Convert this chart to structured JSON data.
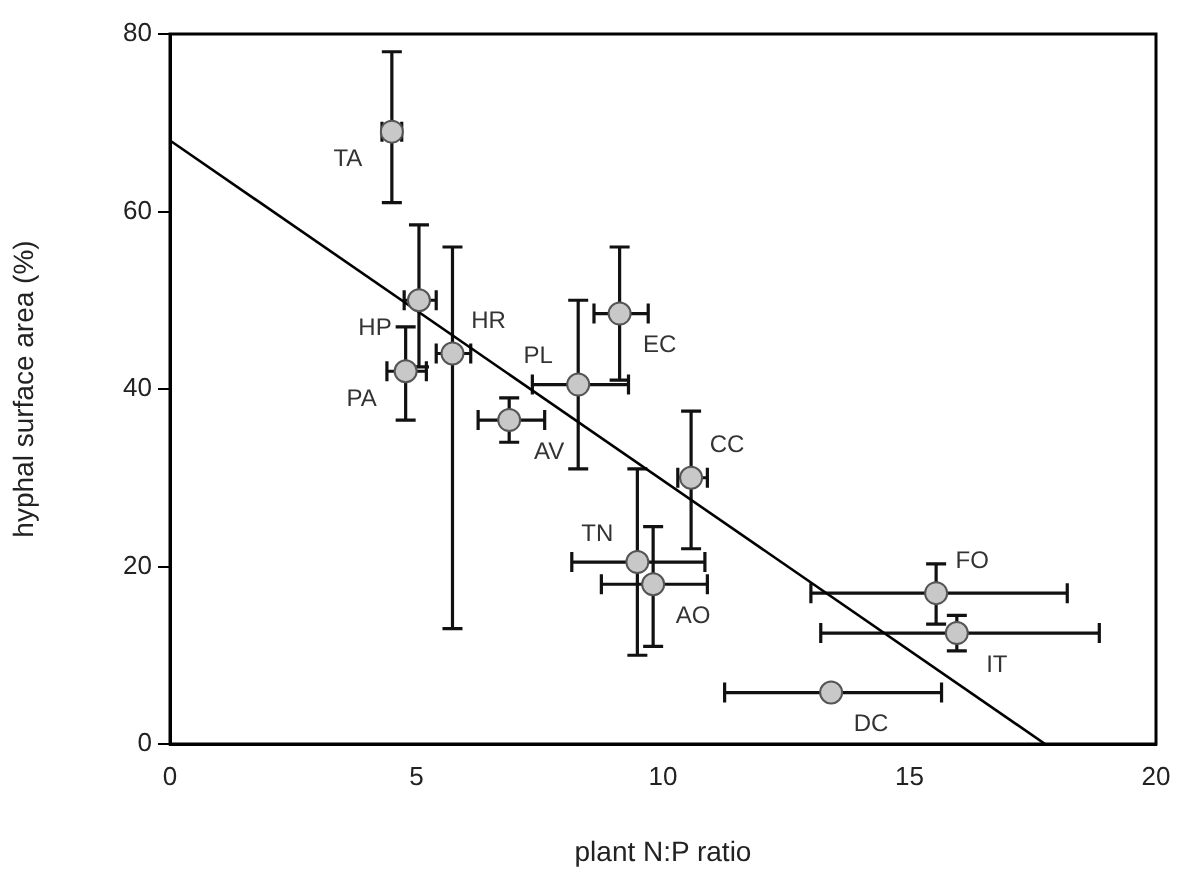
{
  "chart_data": {
    "type": "scatter",
    "xlabel": "plant N:P ratio",
    "ylabel": "hyphal surface area (%)",
    "xlim": [
      0,
      20
    ],
    "xticks": [
      0,
      5,
      10,
      15,
      20
    ],
    "ylim": [
      0,
      80
    ],
    "yticks": [
      0,
      20,
      40,
      60,
      80
    ],
    "grid": false,
    "legend": false,
    "marker": "circle",
    "series": [
      {
        "type": "line",
        "color": "#000000",
        "marker": "none",
        "x": [
          0,
          17.75
        ],
        "values": [
          68,
          0
        ]
      },
      {
        "color": "#c8c8c8",
        "x": [
          4.5,
          5.05,
          5.73,
          4.78,
          9.12,
          8.28,
          6.88,
          10.57,
          9.48,
          9.8,
          13.41,
          15.54,
          15.96
        ],
        "values": [
          69,
          50,
          44,
          42,
          48.5,
          40.5,
          36.5,
          30,
          20.5,
          18,
          5.8,
          17,
          12.5
        ],
        "errors": [
          [
            61,
            78
          ],
          [
            42.5,
            58.5
          ],
          [
            13,
            56
          ],
          [
            36.5,
            47
          ],
          [
            41,
            56
          ],
          [
            31,
            50
          ],
          [
            34,
            39
          ],
          [
            22,
            37.5
          ],
          [
            10,
            31
          ],
          [
            11,
            24.5
          ],
          null,
          [
            13.5,
            20.3
          ],
          [
            10.5,
            14.5
          ]
        ],
        "xerrors": [
          [
            4.3,
            4.7
          ],
          [
            4.75,
            5.4
          ],
          [
            5.4,
            6.1
          ],
          [
            4.4,
            5.2
          ],
          [
            8.6,
            9.7
          ],
          [
            7.35,
            9.3
          ],
          [
            6.25,
            7.6
          ],
          [
            10.3,
            10.9
          ],
          [
            8.15,
            10.85
          ],
          [
            8.75,
            10.9
          ],
          [
            11.25,
            15.65
          ],
          [
            13,
            18.2
          ],
          [
            13.2,
            18.85
          ]
        ]
      }
    ],
    "annotations": [
      {
        "text": "TA",
        "x": 4.5,
        "y": 69
      },
      {
        "text": "HP",
        "x": 5.05,
        "y": 50
      },
      {
        "text": "HR",
        "x": 5.73,
        "y": 44
      },
      {
        "text": "PA",
        "x": 4.78,
        "y": 42
      },
      {
        "text": "EC",
        "x": 9.12,
        "y": 48.5
      },
      {
        "text": "PL",
        "x": 8.28,
        "y": 40.5
      },
      {
        "text": "AV",
        "x": 6.88,
        "y": 36.5
      },
      {
        "text": "CC",
        "x": 10.57,
        "y": 30
      },
      {
        "text": "TN",
        "x": 9.48,
        "y": 20.5
      },
      {
        "text": "AO",
        "x": 9.8,
        "y": 18
      },
      {
        "text": "DC",
        "x": 13.41,
        "y": 5.8
      },
      {
        "text": "FO",
        "x": 15.54,
        "y": 17
      },
      {
        "text": "IT",
        "x": 15.96,
        "y": 12.5
      }
    ]
  }
}
